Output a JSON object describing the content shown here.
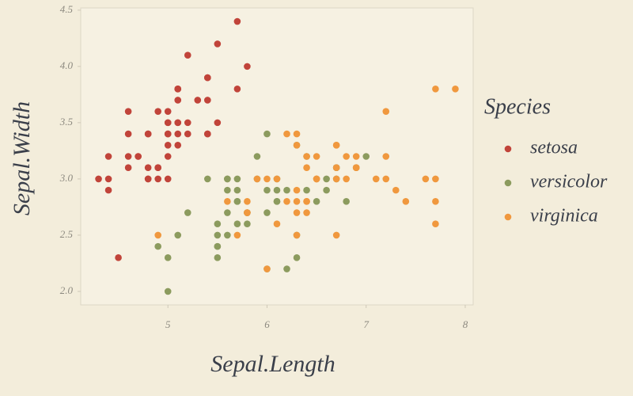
{
  "chart_data": {
    "type": "scatter",
    "x_label": "Sepal.Length",
    "y_label": "Sepal.Width",
    "legend_title": "Species",
    "xlim": [
      4.12,
      8.08
    ],
    "ylim": [
      1.88,
      4.52
    ],
    "xticks": [
      5,
      6,
      7,
      8
    ],
    "yticks": [
      {
        "value": 2,
        "label": "2.0"
      },
      2.5,
      {
        "value": 3,
        "label": "3.0"
      },
      3.5,
      {
        "value": 4,
        "label": "4.0"
      },
      4.5
    ],
    "grid": false,
    "legend_position": "right",
    "series": [
      {
        "name": "setosa",
        "color": "#c1443a",
        "x": [
          5.1,
          4.9,
          4.7,
          4.6,
          5.0,
          5.4,
          4.6,
          5.0,
          4.4,
          4.9,
          5.4,
          4.8,
          4.8,
          4.3,
          5.8,
          5.7,
          5.4,
          5.1,
          5.7,
          5.1,
          5.4,
          5.1,
          4.6,
          5.1,
          4.8,
          5.0,
          5.0,
          5.2,
          5.2,
          4.7,
          4.8,
          5.4,
          5.2,
          5.5,
          4.9,
          5.0,
          5.5,
          4.9,
          4.4,
          5.1,
          5.0,
          4.5,
          4.4,
          5.0,
          5.1,
          4.8,
          5.1,
          4.6,
          5.3,
          5.0
        ],
        "values": [
          3.5,
          3.0,
          3.2,
          3.1,
          3.6,
          3.9,
          3.4,
          3.4,
          2.9,
          3.1,
          3.7,
          3.4,
          3.0,
          3.0,
          4.0,
          4.4,
          3.9,
          3.5,
          3.8,
          3.8,
          3.4,
          3.7,
          3.6,
          3.3,
          3.4,
          3.0,
          3.4,
          3.5,
          3.4,
          3.2,
          3.1,
          3.4,
          4.1,
          4.2,
          3.1,
          3.2,
          3.5,
          3.6,
          3.0,
          3.4,
          3.5,
          2.3,
          3.2,
          3.5,
          3.8,
          3.0,
          3.8,
          3.2,
          3.7,
          3.3
        ]
      },
      {
        "name": "versicolor",
        "color": "#8c9b5e",
        "x": [
          7.0,
          6.4,
          6.9,
          5.5,
          6.5,
          5.7,
          6.3,
          4.9,
          6.6,
          5.2,
          5.0,
          5.9,
          6.0,
          6.1,
          5.6,
          6.7,
          5.6,
          5.8,
          6.2,
          5.6,
          5.9,
          6.1,
          6.3,
          6.1,
          6.4,
          6.6,
          6.8,
          6.7,
          6.0,
          5.7,
          5.5,
          5.5,
          5.8,
          6.0,
          5.4,
          6.0,
          6.7,
          6.3,
          5.6,
          5.5,
          5.5,
          6.1,
          5.8,
          5.0,
          5.6,
          5.7,
          5.7,
          6.2,
          5.1,
          5.7
        ],
        "values": [
          3.2,
          3.2,
          3.1,
          2.3,
          2.8,
          2.8,
          3.3,
          2.4,
          2.9,
          2.7,
          2.0,
          3.0,
          2.2,
          2.9,
          2.9,
          3.1,
          3.0,
          2.7,
          2.2,
          2.5,
          3.2,
          2.8,
          2.5,
          2.8,
          2.9,
          3.0,
          2.8,
          3.0,
          2.9,
          2.6,
          2.4,
          2.4,
          2.7,
          2.7,
          3.0,
          3.4,
          3.1,
          2.3,
          3.0,
          2.5,
          2.6,
          3.0,
          2.6,
          2.3,
          2.7,
          3.0,
          2.9,
          2.9,
          2.5,
          2.8
        ]
      },
      {
        "name": "virginica",
        "color": "#f0983e",
        "x": [
          6.3,
          5.8,
          7.1,
          6.3,
          6.5,
          7.6,
          4.9,
          7.3,
          6.7,
          7.2,
          6.5,
          6.4,
          6.8,
          5.7,
          5.8,
          6.4,
          6.5,
          7.7,
          7.7,
          6.0,
          6.9,
          5.6,
          7.7,
          6.3,
          6.7,
          7.2,
          6.2,
          6.1,
          6.4,
          7.2,
          7.4,
          7.9,
          6.4,
          6.3,
          6.1,
          7.7,
          6.3,
          6.4,
          6.0,
          6.9,
          6.7,
          6.9,
          5.8,
          6.8,
          6.7,
          6.7,
          6.3,
          6.5,
          6.2,
          5.9
        ],
        "values": [
          3.3,
          2.7,
          3.0,
          2.9,
          3.0,
          3.0,
          2.5,
          2.9,
          2.5,
          3.6,
          3.2,
          2.7,
          3.0,
          2.5,
          2.8,
          3.2,
          3.0,
          3.8,
          2.6,
          2.2,
          3.2,
          2.8,
          2.8,
          2.7,
          3.3,
          3.2,
          2.8,
          3.0,
          2.8,
          3.0,
          2.8,
          3.8,
          2.8,
          2.8,
          2.6,
          3.0,
          3.4,
          3.1,
          3.0,
          3.1,
          3.1,
          3.1,
          2.7,
          3.2,
          3.3,
          3.0,
          2.5,
          3.0,
          3.4,
          3.0
        ]
      }
    ]
  }
}
